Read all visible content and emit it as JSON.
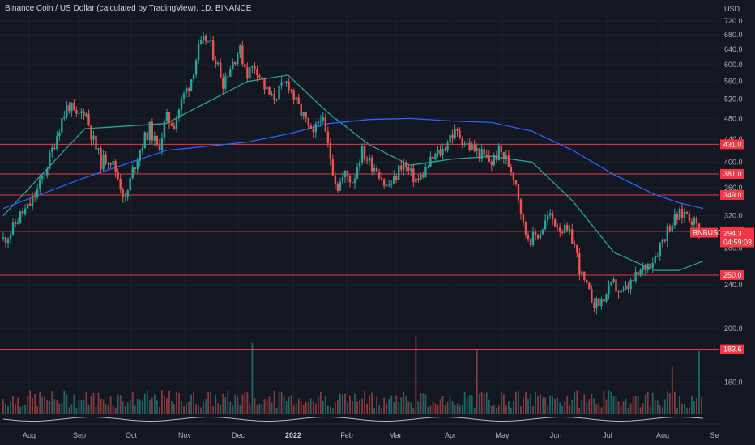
{
  "chart_data": {
    "type": "candlestick",
    "title": "Binance Coin / US Dollar (calculated by TradingView), 1D, BINANCE",
    "y_unit": "USD",
    "ylim": [
      140,
      740
    ],
    "y_scale": "log",
    "y_ticks": [
      160,
      200,
      240,
      280,
      320,
      360,
      400,
      440,
      480,
      520,
      560,
      600,
      640,
      680,
      720
    ],
    "x_ticks": [
      "Aug",
      "Sep",
      "Oct",
      "Nov",
      "Dec",
      "2022",
      "Feb",
      "Mar",
      "Apr",
      "May",
      "Jun",
      "Jul",
      "Aug",
      "Se"
    ],
    "grid": true,
    "horizontal_levels": [
      431.0,
      381.0,
      349.0,
      300.0,
      250.0,
      183.6
    ],
    "current_price": {
      "symbol": "BNBUSD",
      "value": 294.3,
      "countdown": "04:59:03"
    },
    "price_path": [
      [
        0,
        290
      ],
      [
        10,
        300
      ],
      [
        20,
        320
      ],
      [
        30,
        330
      ],
      [
        40,
        350
      ],
      [
        50,
        380
      ],
      [
        60,
        420
      ],
      [
        70,
        470
      ],
      [
        80,
        510
      ],
      [
        90,
        480
      ],
      [
        100,
        500
      ],
      [
        110,
        440
      ],
      [
        120,
        400
      ],
      [
        130,
        410
      ],
      [
        140,
        380
      ],
      [
        150,
        340
      ],
      [
        160,
        390
      ],
      [
        170,
        430
      ],
      [
        180,
        460
      ],
      [
        190,
        420
      ],
      [
        200,
        480
      ],
      [
        210,
        470
      ],
      [
        220,
        520
      ],
      [
        230,
        560
      ],
      [
        240,
        640
      ],
      [
        250,
        670
      ],
      [
        260,
        620
      ],
      [
        270,
        560
      ],
      [
        280,
        600
      ],
      [
        290,
        640
      ],
      [
        300,
        580
      ],
      [
        310,
        600
      ],
      [
        320,
        550
      ],
      [
        330,
        520
      ],
      [
        340,
        540
      ],
      [
        350,
        560
      ],
      [
        360,
        510
      ],
      [
        370,
        480
      ],
      [
        380,
        440
      ],
      [
        390,
        490
      ],
      [
        400,
        420
      ],
      [
        410,
        360
      ],
      [
        420,
        380
      ],
      [
        430,
        370
      ],
      [
        440,
        420
      ],
      [
        450,
        400
      ],
      [
        460,
        390
      ],
      [
        470,
        360
      ],
      [
        480,
        370
      ],
      [
        490,
        400
      ],
      [
        500,
        380
      ],
      [
        510,
        370
      ],
      [
        520,
        390
      ],
      [
        530,
        410
      ],
      [
        540,
        420
      ],
      [
        550,
        450
      ],
      [
        560,
        450
      ],
      [
        570,
        430
      ],
      [
        580,
        420
      ],
      [
        590,
        410
      ],
      [
        600,
        400
      ],
      [
        610,
        420
      ],
      [
        620,
        400
      ],
      [
        630,
        370
      ],
      [
        640,
        300
      ],
      [
        650,
        290
      ],
      [
        660,
        300
      ],
      [
        670,
        320
      ],
      [
        680,
        310
      ],
      [
        690,
        300
      ],
      [
        700,
        290
      ],
      [
        710,
        250
      ],
      [
        720,
        230
      ],
      [
        730,
        220
      ],
      [
        740,
        230
      ],
      [
        750,
        240
      ],
      [
        760,
        230
      ],
      [
        770,
        240
      ],
      [
        780,
        250
      ],
      [
        790,
        260
      ],
      [
        800,
        270
      ],
      [
        810,
        290
      ],
      [
        820,
        310
      ],
      [
        830,
        320
      ],
      [
        840,
        325
      ],
      [
        850,
        310
      ],
      [
        860,
        294
      ]
    ],
    "series": [
      {
        "name": "",
        "color": "#26a69a",
        "points": [
          [
            0,
            320
          ],
          [
            100,
            460
          ],
          [
            200,
            470
          ],
          [
            300,
            560
          ],
          [
            350,
            575
          ],
          [
            400,
            490
          ],
          [
            450,
            430
          ],
          [
            500,
            395
          ],
          [
            550,
            405
          ],
          [
            600,
            410
          ],
          [
            650,
            400
          ],
          [
            700,
            340
          ],
          [
            750,
            275
          ],
          [
            800,
            255
          ],
          [
            830,
            255
          ],
          [
            860,
            265
          ]
        ]
      },
      {
        "name": "",
        "color": "#2962ff",
        "points": [
          [
            0,
            330
          ],
          [
            100,
            375
          ],
          [
            200,
            420
          ],
          [
            300,
            435
          ],
          [
            350,
            450
          ],
          [
            400,
            470
          ],
          [
            450,
            478
          ],
          [
            500,
            480
          ],
          [
            550,
            475
          ],
          [
            600,
            472
          ],
          [
            650,
            455
          ],
          [
            700,
            420
          ],
          [
            750,
            380
          ],
          [
            800,
            350
          ],
          [
            830,
            338
          ],
          [
            860,
            330
          ]
        ]
      }
    ],
    "volume_colors": {
      "up": "#26a69a",
      "down": "#ef5350"
    },
    "colors": {
      "background": "#131722",
      "grid": "#1e222d",
      "hline": "#f23645",
      "up": "#26a69a",
      "down": "#ef5350"
    }
  }
}
